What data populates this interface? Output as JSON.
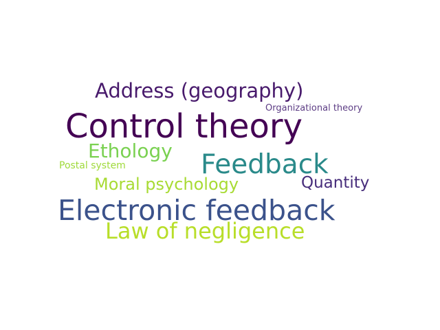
{
  "word_cloud": {
    "words": [
      {
        "text": "Control theory",
        "color": "#440154"
      },
      {
        "text": "Electronic feedback",
        "color": "#3b528b"
      },
      {
        "text": "Feedback",
        "color": "#2a8a8a"
      },
      {
        "text": "Address (geography)",
        "color": "#481a6c"
      },
      {
        "text": "Law of negligence",
        "color": "#b8de29"
      },
      {
        "text": "Ethology",
        "color": "#7ad151"
      },
      {
        "text": "Moral psychology",
        "color": "#a8db34"
      },
      {
        "text": "Quantity",
        "color": "#472d7b"
      },
      {
        "text": "Organizational theory",
        "color": "#5c3c84"
      },
      {
        "text": "Postal system",
        "color": "#9fda3a"
      }
    ]
  }
}
